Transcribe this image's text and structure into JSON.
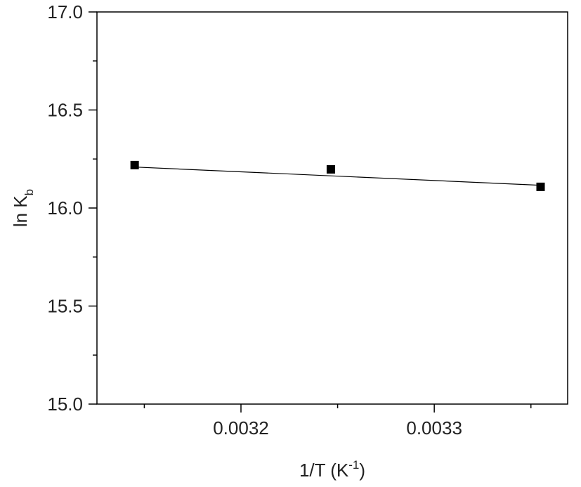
{
  "chart_data": {
    "type": "scatter",
    "xlabel": {
      "text": "1/T (K",
      "sup": "-1",
      "tail": ")"
    },
    "ylabel": {
      "text": "ln K",
      "sub": "b"
    },
    "series": [
      {
        "color": "#000000",
        "marker": "square",
        "x": [
          0.003145,
          0.0032465,
          0.003355
        ],
        "values": [
          16.219,
          16.197,
          16.108
        ]
      },
      {
        "color": "#000000",
        "marker": "none",
        "x": [
          0.003145,
          0.003355
        ],
        "values": [
          16.209,
          16.116
        ]
      }
    ],
    "xlim": [
      0.0031255,
      0.003369
    ],
    "ylim": [
      15,
      17
    ],
    "xticks": [
      0.0032,
      0.0033
    ],
    "xminorticks": [
      0.00315,
      0.00325,
      0.00335
    ],
    "yticks": [
      {
        "value": 15,
        "label": "15.0"
      },
      15.5,
      {
        "value": 16,
        "label": "16.0"
      },
      16.5,
      {
        "value": 17,
        "label": "17.0"
      }
    ],
    "yminorticks": [
      15.25,
      15.75,
      16.25,
      16.75
    ]
  }
}
